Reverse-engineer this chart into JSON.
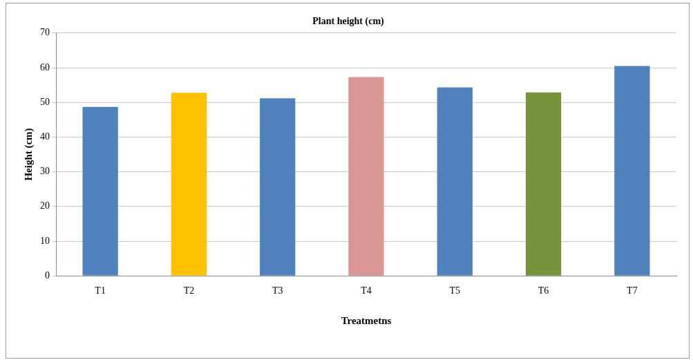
{
  "chart_data": {
    "type": "bar",
    "title": "Plant height (cm)",
    "xlabel": "Treatmetns",
    "ylabel": "Height (cm)",
    "categories": [
      "T1",
      "T2",
      "T3",
      "T4",
      "T5",
      "T6",
      "T7"
    ],
    "values": [
      48.7,
      52.8,
      51.2,
      57.3,
      54.3,
      52.9,
      60.5
    ],
    "colors": [
      "#4f81bd",
      "#ffc000",
      "#4f81bd",
      "#d99694",
      "#4f81bd",
      "#77933c",
      "#4f81bd"
    ],
    "ylim": [
      0,
      70
    ],
    "yticks": [
      0,
      10,
      20,
      30,
      40,
      50,
      60,
      70
    ],
    "grid": "y",
    "legend": false
  }
}
